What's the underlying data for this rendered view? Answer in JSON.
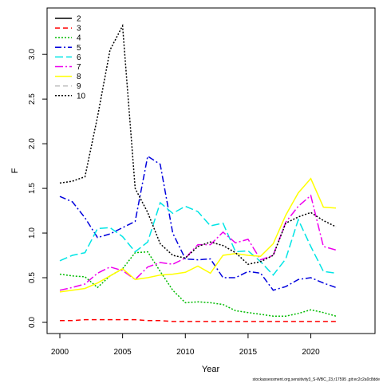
{
  "chart_data": {
    "type": "line",
    "xlabel": "Year",
    "ylabel": "F",
    "xlim": [
      2000,
      2022
    ],
    "ylim": [
      0,
      3.35
    ],
    "x_ticks": [
      2000,
      2005,
      2010,
      2015,
      2020
    ],
    "y_ticks": [
      0.0,
      0.5,
      1.0,
      1.5,
      2.0,
      2.5,
      3.0
    ],
    "y_tick_labels": [
      "0.0",
      "0.5",
      "1.0",
      "1.5",
      "2.0",
      "2.5",
      "3.0"
    ],
    "grid": false,
    "legend_position": "top-left",
    "x": [
      2000,
      2001,
      2002,
      2003,
      2004,
      2005,
      2006,
      2007,
      2008,
      2009,
      2010,
      2011,
      2012,
      2013,
      2014,
      2015,
      2016,
      2017,
      2018,
      2019,
      2020,
      2021,
      2022
    ],
    "series": [
      {
        "name": "2",
        "color": "#000000",
        "dash": "solid",
        "values": [
          null,
          null,
          null,
          null,
          null,
          null,
          null,
          null,
          null,
          null,
          null,
          null,
          null,
          null,
          null,
          null,
          null,
          null,
          null,
          null,
          null,
          null,
          null
        ]
      },
      {
        "name": "3",
        "color": "#ff0000",
        "dash": "6,4",
        "values": [
          0.02,
          0.02,
          0.03,
          0.03,
          0.03,
          0.03,
          0.03,
          0.02,
          0.02,
          0.01,
          0.01,
          0.01,
          0.01,
          0.01,
          0.01,
          0.01,
          0.01,
          0.01,
          0.01,
          0.01,
          0.01,
          0.01,
          0.01
        ]
      },
      {
        "name": "4",
        "color": "#00bb00",
        "dash": "2,2",
        "values": [
          0.54,
          0.52,
          0.51,
          0.39,
          0.52,
          0.6,
          0.78,
          0.79,
          0.57,
          0.36,
          0.22,
          0.23,
          0.22,
          0.2,
          0.13,
          0.11,
          0.09,
          0.07,
          0.07,
          0.1,
          0.14,
          0.11,
          0.07
        ]
      },
      {
        "name": "5",
        "color": "#0000dd",
        "dash": "8,3,2,3",
        "values": [
          1.41,
          1.35,
          1.17,
          0.95,
          0.99,
          1.06,
          1.13,
          1.86,
          1.77,
          1.0,
          0.71,
          0.7,
          0.71,
          0.5,
          0.5,
          0.57,
          0.55,
          0.36,
          0.4,
          0.48,
          0.5,
          0.44,
          0.39
        ]
      },
      {
        "name": "6",
        "color": "#00e5e5",
        "dash": "10,4",
        "values": [
          0.69,
          0.75,
          0.78,
          1.05,
          1.06,
          0.96,
          0.79,
          0.9,
          1.34,
          1.22,
          1.3,
          1.24,
          1.08,
          1.11,
          0.79,
          0.8,
          0.68,
          0.53,
          0.71,
          1.15,
          0.85,
          0.57,
          0.55
        ]
      },
      {
        "name": "7",
        "color": "#ee00ee",
        "dash": "10,3,2,3",
        "values": [
          0.36,
          0.39,
          0.43,
          0.55,
          0.62,
          0.58,
          0.48,
          0.62,
          0.67,
          0.65,
          0.72,
          0.87,
          0.87,
          1.01,
          0.89,
          0.93,
          0.7,
          0.75,
          1.12,
          1.3,
          1.42,
          0.85,
          0.81
        ]
      },
      {
        "name": "8",
        "color": "#ffff00",
        "dash": "solid",
        "values": [
          0.34,
          0.36,
          0.38,
          0.44,
          0.52,
          0.6,
          0.48,
          0.5,
          0.53,
          0.54,
          0.56,
          0.63,
          0.55,
          0.75,
          0.77,
          0.75,
          0.74,
          0.88,
          1.2,
          1.45,
          1.61,
          1.29,
          1.28
        ]
      },
      {
        "name": "9",
        "color": "#bebebe",
        "dash": "6,4",
        "values": [
          null,
          null,
          null,
          null,
          null,
          null,
          null,
          null,
          null,
          null,
          null,
          null,
          null,
          null,
          null,
          null,
          null,
          null,
          null,
          null,
          null,
          null,
          null
        ]
      },
      {
        "name": "10",
        "color": "#000000",
        "dash": "2,2",
        "values": [
          1.56,
          1.58,
          1.63,
          2.3,
          3.05,
          3.32,
          1.5,
          1.23,
          0.88,
          0.75,
          0.72,
          0.85,
          0.9,
          0.86,
          0.78,
          0.65,
          0.68,
          0.75,
          1.11,
          1.18,
          1.23,
          1.14,
          1.07
        ]
      }
    ],
    "footer": "stockassessment.org,sensitivity3_S-WBC_23,r17595 ,git:ec2c2a0c8dde"
  }
}
